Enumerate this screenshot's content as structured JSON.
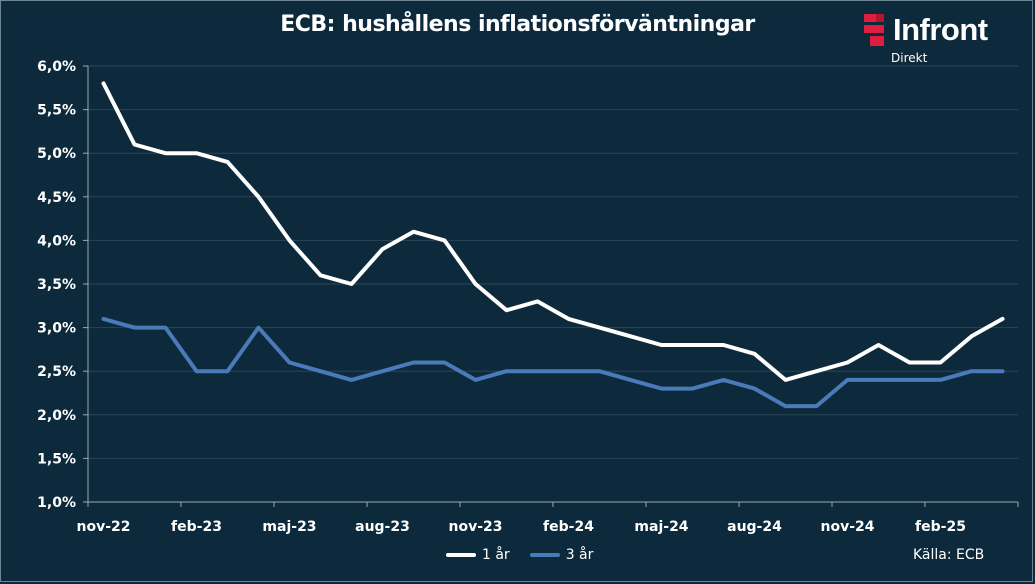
{
  "title": "ECB: hushållens inflationsförväntningar",
  "logo": {
    "name": "Infront",
    "sub": "Direkt"
  },
  "source_label": "Källa:  ECB",
  "colors": {
    "background": "#0d2a3c",
    "series_1": "#ffffff",
    "series_2": "#4a7ab8",
    "logo_mark": "#e11d3f"
  },
  "chart_data": {
    "type": "line",
    "title": "ECB: hushållens inflationsförväntningar",
    "x": [
      "nov-22",
      "dec-22",
      "jan-23",
      "feb-23",
      "mar-23",
      "apr-23",
      "maj-23",
      "jun-23",
      "jul-23",
      "aug-23",
      "sep-23",
      "okt-23",
      "nov-23",
      "dec-23",
      "jan-24",
      "feb-24",
      "mar-24",
      "apr-24",
      "maj-24",
      "jun-24",
      "jul-24",
      "aug-24",
      "sep-24",
      "okt-24",
      "nov-24",
      "dec-24",
      "jan-25",
      "feb-25",
      "mar-25",
      "apr-25"
    ],
    "x_tick_labels": [
      "nov-22",
      "feb-23",
      "maj-23",
      "aug-23",
      "nov-23",
      "feb-24",
      "maj-24",
      "aug-24",
      "nov-24",
      "feb-25"
    ],
    "y_tick_labels": [
      "1,0%",
      "1,5%",
      "2,0%",
      "2,5%",
      "3,0%",
      "3,5%",
      "4,0%",
      "4,5%",
      "5,0%",
      "5,5%",
      "6,0%"
    ],
    "ylim": [
      1.0,
      6.0
    ],
    "grid": true,
    "legend_position": "bottom",
    "series": [
      {
        "name": "1 år",
        "values": [
          5.8,
          5.1,
          5.0,
          5.0,
          4.9,
          4.5,
          4.0,
          3.6,
          3.5,
          3.9,
          4.1,
          4.0,
          3.5,
          3.2,
          3.3,
          3.1,
          3.0,
          2.9,
          2.8,
          2.8,
          2.8,
          2.7,
          2.4,
          2.5,
          2.6,
          2.8,
          2.6,
          2.6,
          2.9,
          3.1
        ]
      },
      {
        "name": "3 år",
        "values": [
          3.1,
          3.0,
          3.0,
          2.5,
          2.5,
          3.0,
          2.6,
          2.5,
          2.4,
          2.5,
          2.6,
          2.6,
          2.4,
          2.5,
          2.5,
          2.5,
          2.5,
          2.4,
          2.3,
          2.3,
          2.4,
          2.3,
          2.1,
          2.1,
          2.4,
          2.4,
          2.4,
          2.4,
          2.5,
          2.5
        ]
      }
    ]
  }
}
